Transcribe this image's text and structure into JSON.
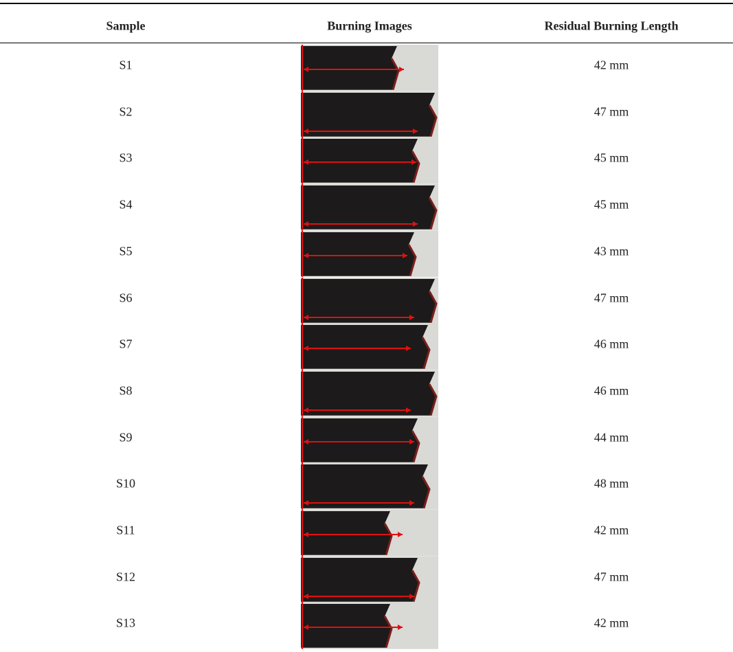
{
  "table": {
    "header": [
      "Sample",
      "Burning Images",
      "Residual Burning Length"
    ],
    "rows": [
      [
        "S1",
        "42 mm"
      ],
      [
        "S2",
        "47 mm"
      ],
      [
        "S3",
        "45 mm"
      ],
      [
        "S4",
        "45 mm"
      ],
      [
        "S5",
        "43 mm"
      ],
      [
        "S6",
        "47 mm"
      ],
      [
        "S7",
        "46 mm"
      ],
      [
        "S8",
        "46 mm"
      ],
      [
        "S9",
        "44 mm"
      ],
      [
        "S10",
        "48 mm"
      ],
      [
        "S11",
        "42 mm"
      ],
      [
        "S12",
        "47 mm"
      ],
      [
        "S13",
        "42 mm"
      ]
    ]
  }
}
